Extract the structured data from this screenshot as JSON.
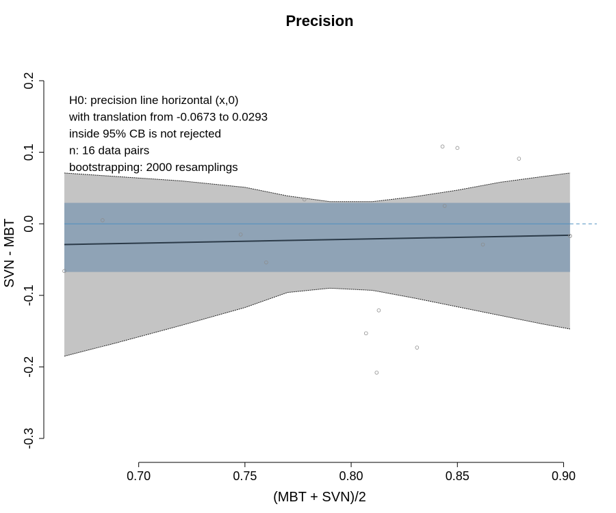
{
  "chart_data": {
    "type": "scatter",
    "title": "Precision",
    "xlabel": "(MBT + SVN)/2",
    "ylabel": "SVN - MBT",
    "xlim": [
      0.665,
      0.905
    ],
    "ylim": [
      -0.3,
      0.2
    ],
    "x_ticks": [
      0.7,
      0.75,
      0.8,
      0.85,
      0.9
    ],
    "x_tick_labels": [
      "0.70",
      "0.75",
      "0.80",
      "0.85",
      "0.90"
    ],
    "y_ticks": [
      -0.3,
      -0.2,
      -0.1,
      0.0,
      0.1,
      0.2
    ],
    "y_tick_labels": [
      "-0.3",
      "-0.2",
      "-0.1",
      "0.0",
      "0.1",
      "0.2"
    ],
    "grid": false,
    "annotations": [
      "H0: precision line horizontal (x,0)",
      "with translation from -0.0673 to 0.0293",
      "inside 95% CB is not rejected",
      "n: 16 data pairs",
      "bootstrapping: 2000 resamplings"
    ],
    "points": [
      {
        "x": 0.665,
        "y": -0.066
      },
      {
        "x": 0.683,
        "y": 0.005
      },
      {
        "x": 0.748,
        "y": -0.015
      },
      {
        "x": 0.76,
        "y": -0.054
      },
      {
        "x": 0.778,
        "y": 0.034
      },
      {
        "x": 0.807,
        "y": -0.153
      },
      {
        "x": 0.812,
        "y": -0.208
      },
      {
        "x": 0.813,
        "y": -0.121
      },
      {
        "x": 0.831,
        "y": -0.173
      },
      {
        "x": 0.843,
        "y": 0.108
      },
      {
        "x": 0.844,
        "y": 0.025
      },
      {
        "x": 0.85,
        "y": 0.106
      },
      {
        "x": 0.862,
        "y": -0.029
      },
      {
        "x": 0.879,
        "y": 0.091
      },
      {
        "x": 0.903,
        "y": -0.017
      },
      {
        "x": 0.903,
        "y": -0.017
      }
    ],
    "precision_line": {
      "x": [
        0.665,
        0.903
      ],
      "y": [
        -0.029,
        -0.016
      ]
    },
    "translation_band": {
      "x": [
        0.665,
        0.903
      ],
      "ymin": -0.0673,
      "ymax": 0.0293
    },
    "confidence_band": {
      "x": [
        0.665,
        0.69,
        0.72,
        0.75,
        0.77,
        0.79,
        0.81,
        0.83,
        0.85,
        0.87,
        0.89,
        0.903
      ],
      "upper": [
        0.071,
        0.066,
        0.06,
        0.051,
        0.039,
        0.031,
        0.031,
        0.038,
        0.047,
        0.058,
        0.066,
        0.071
      ],
      "lower": [
        -0.185,
        -0.166,
        -0.142,
        -0.117,
        -0.096,
        -0.09,
        -0.093,
        -0.104,
        -0.116,
        -0.128,
        -0.14,
        -0.147
      ]
    },
    "reference_line_y": 0.0,
    "colors": {
      "confidence_band": "#c4c4c4",
      "translation_band": "#8fa3b6",
      "precision_line": "#2b3a48",
      "reference_line": "#4f8fc0",
      "points": "#8c8c8c"
    }
  }
}
